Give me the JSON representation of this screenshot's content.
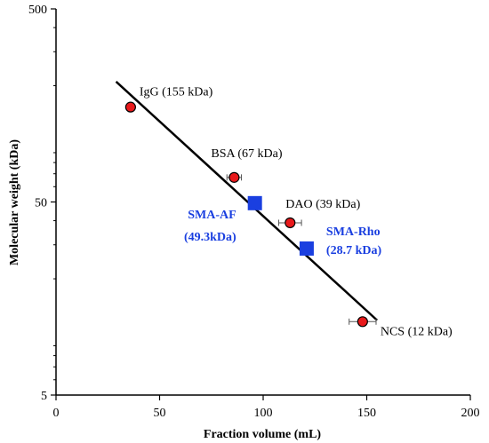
{
  "chart_data": {
    "type": "scatter",
    "title": "",
    "xlabel": "Fraction volume (mL)",
    "ylabel": "Molecular weight (kDa)",
    "xlim": [
      0,
      200
    ],
    "ylim": [
      5,
      500
    ],
    "yscale": "log",
    "x_ticks": [
      "0",
      "50",
      "100",
      "150",
      "200"
    ],
    "y_ticks": [
      "5",
      "50",
      "500"
    ],
    "grid": false,
    "colors": {
      "standard": "#e8191b",
      "sample": "#1a3fe0",
      "fit": "#000000"
    },
    "series": [
      {
        "name": "",
        "marker": "circle",
        "points": [
          {
            "x": 36,
            "y": 155,
            "xerr": 1.5,
            "label": "IgG (155 kDa)"
          },
          {
            "x": 86,
            "y": 67,
            "xerr": 3.5,
            "label": "BSA (67 kDa)"
          },
          {
            "x": 113,
            "y": 39,
            "xerr": 5.5,
            "label": "DAO (39 kDa)"
          },
          {
            "x": 148,
            "y": 12,
            "xerr": 6.5,
            "label": "NCS (12 kDa)"
          }
        ]
      },
      {
        "name": "",
        "marker": "square",
        "points": [
          {
            "x": 96,
            "y": 49.3,
            "label_line1": "SMA-AF",
            "label_line2": "(49.3kDa)"
          },
          {
            "x": 121,
            "y": 28.7,
            "label_line1": "SMA-Rho",
            "label_line2": "(28.7 kDa)"
          }
        ]
      }
    ],
    "fit_line": {
      "x": [
        29,
        155
      ],
      "y": [
        210,
        12.2
      ]
    }
  }
}
